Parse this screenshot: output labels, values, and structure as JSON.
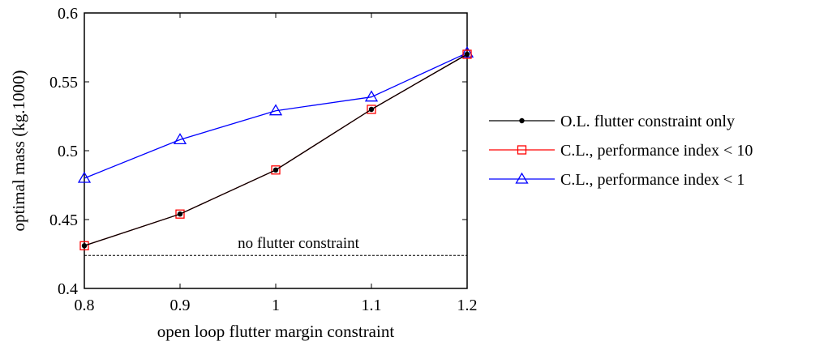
{
  "chart_data": {
    "type": "line",
    "xlabel": "open loop flutter margin constraint",
    "ylabel": "optimal mass (kg.1000)",
    "xlim": [
      0.8,
      1.2
    ],
    "ylim": [
      0.4,
      0.6
    ],
    "x_ticks": [
      "0.8",
      "0.9",
      "1",
      "1.1",
      "1.2"
    ],
    "y_ticks": [
      "0.4",
      "0.45",
      "0.5",
      "0.55",
      "0.6"
    ],
    "x": [
      0.8,
      0.9,
      1.0,
      1.1,
      1.2
    ],
    "series": [
      {
        "name": "O.L. flutter constraint only",
        "color": "#000000",
        "marker": "dot",
        "values": [
          0.431,
          0.454,
          0.486,
          0.53,
          0.57
        ]
      },
      {
        "name": "C.L., performance index < 10",
        "color": "#ff0000",
        "marker": "square",
        "values": [
          0.431,
          0.454,
          0.486,
          0.53,
          0.57
        ]
      },
      {
        "name": "C.L., performance index < 1",
        "color": "#0000ff",
        "marker": "triangle",
        "values": [
          0.48,
          0.508,
          0.529,
          0.539,
          0.571
        ]
      }
    ],
    "reference_line": {
      "label": "no flutter constraint",
      "value": 0.424,
      "style": "dashed"
    },
    "grid": false,
    "legend_position": "right"
  }
}
